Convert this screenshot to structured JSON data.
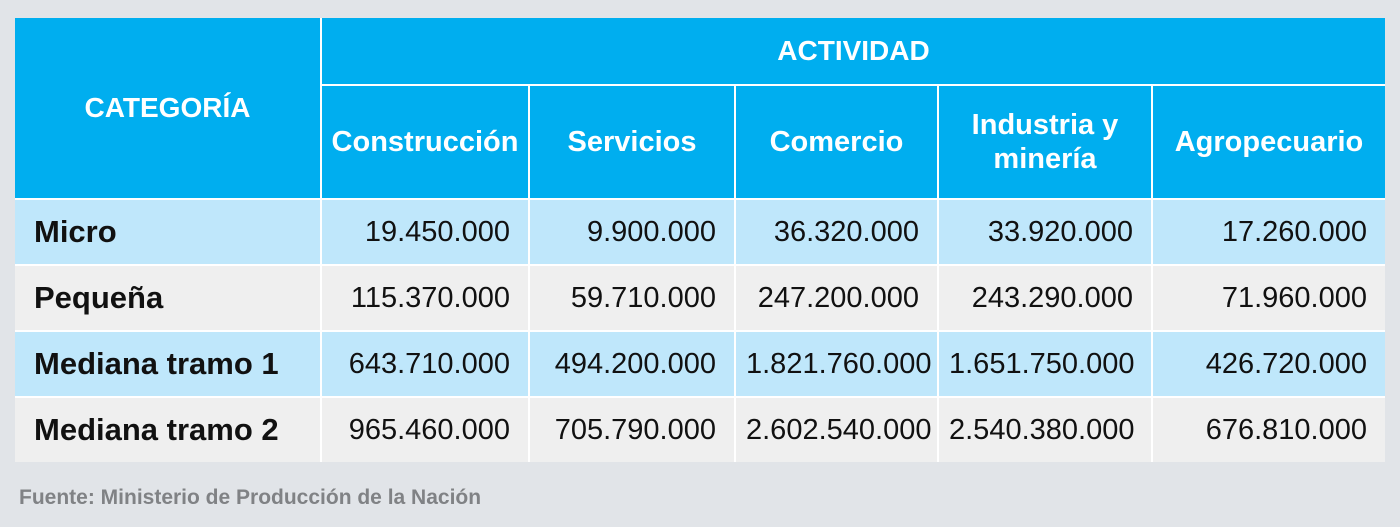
{
  "chart_data": {
    "type": "table",
    "row_header_label": "CATEGORÍA",
    "column_group_label": "ACTIVIDAD",
    "columns": [
      "Construcción",
      "Servicios",
      "Comercio",
      "Industria y minería",
      "Agropecuario"
    ],
    "rows": [
      {
        "label": "Micro",
        "values": [
          "19.450.000",
          "9.900.000",
          "36.320.000",
          "33.920.000",
          "17.260.000"
        ]
      },
      {
        "label": "Pequeña",
        "values": [
          "115.370.000",
          "59.710.000",
          "247.200.000",
          "243.290.000",
          "71.960.000"
        ]
      },
      {
        "label": "Mediana tramo 1",
        "values": [
          "643.710.000",
          "494.200.000",
          "1.821.760.000",
          "1.651.750.000",
          "426.720.000"
        ]
      },
      {
        "label": "Mediana tramo 2",
        "values": [
          "965.460.000",
          "705.790.000",
          "2.602.540.000",
          "2.540.380.000",
          "676.810.000"
        ]
      }
    ],
    "colors": {
      "header": "#00aeef",
      "row_odd": "#bfe7fb",
      "row_even": "#efefef",
      "background": "#e1e4e8"
    }
  },
  "source": "Fuente: Ministerio de Producción de la Nación"
}
